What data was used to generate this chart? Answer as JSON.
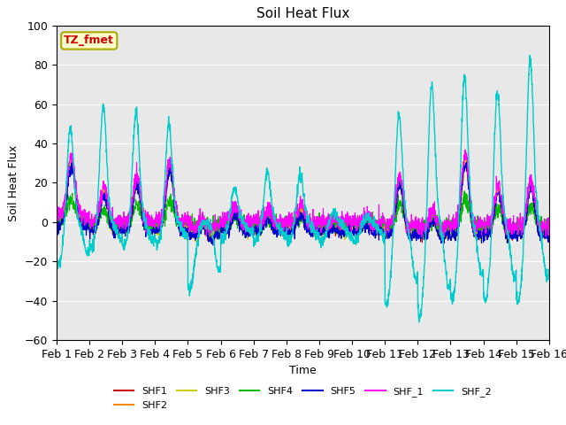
{
  "title": "Soil Heat Flux",
  "xlabel": "Time",
  "ylabel": "Soil Heat Flux",
  "ylim": [
    -60,
    100
  ],
  "xtick_labels": [
    "Feb 1",
    "Feb 2",
    "Feb 3",
    "Feb 4",
    "Feb 5",
    "Feb 6",
    "Feb 7",
    "Feb 8",
    "Feb 9",
    "Feb 10",
    "Feb 11",
    "Feb 12",
    "Feb 13",
    "Feb 14",
    "Feb 15",
    "Feb 16"
  ],
  "series_colors": {
    "SHF1": "#cc0000",
    "SHF2": "#ff8800",
    "SHF3": "#cccc00",
    "SHF4": "#00bb00",
    "SHF5": "#0000cc",
    "SHF_1": "#ff00ff",
    "SHF_2": "#00cccc"
  },
  "annotation_text": "TZ_fmet",
  "annotation_bg": "#ffffcc",
  "annotation_border": "#aaaa00",
  "annotation_text_color": "#cc0000",
  "n_days": 15,
  "pts_per_day": 144,
  "background_color": "#e8e8e8",
  "title_fontsize": 11,
  "legend_row1": [
    "SHF1",
    "SHF2",
    "SHF3",
    "SHF4",
    "SHF5",
    "SHF_1"
  ],
  "legend_row2": [
    "SHF_2"
  ]
}
